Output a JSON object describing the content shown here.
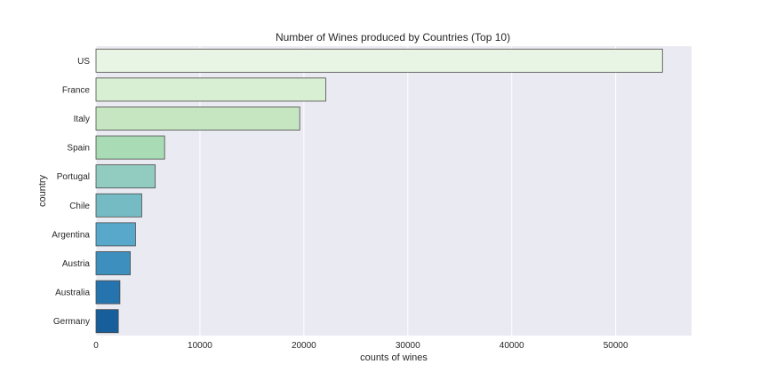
{
  "chart_data": {
    "type": "bar",
    "orientation": "horizontal",
    "title": "Number of Wines produced by Countries (Top 10)",
    "xlabel": "counts of wines",
    "ylabel": "country",
    "categories": [
      "US",
      "France",
      "Italy",
      "Spain",
      "Portugal",
      "Chile",
      "Argentina",
      "Austria",
      "Australia",
      "Germany"
    ],
    "values": [
      54500,
      22100,
      19600,
      6600,
      5700,
      4400,
      3800,
      3300,
      2300,
      2150
    ],
    "xlim": [
      0,
      57300
    ],
    "xticks": [
      0,
      10000,
      20000,
      30000,
      40000,
      50000
    ],
    "xtick_labels": [
      "0",
      "10000",
      "20000",
      "30000",
      "40000",
      "50000"
    ],
    "grid": "vertical",
    "colors": [
      "#e8f5e4",
      "#d8efd3",
      "#c6e6c2",
      "#a9dbb5",
      "#92cbbf",
      "#75bbc4",
      "#57a8cb",
      "#3d8fbe",
      "#2674ad",
      "#165f9a"
    ],
    "plot_background": "#eaeaf2",
    "bar_edge_color": "#4a4a4a"
  }
}
